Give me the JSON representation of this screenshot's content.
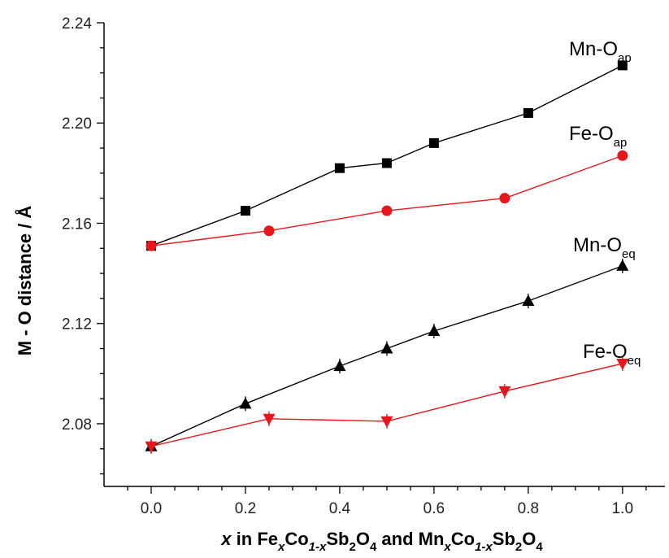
{
  "chart_data": {
    "type": "line",
    "title": "",
    "ylabel": "M - O distance / Å",
    "xlabel_parts": [
      "x",
      " in Fe",
      "x",
      "Co",
      "1-x",
      "Sb",
      "2",
      "O",
      "4",
      " and Mn",
      "x",
      "Co",
      "1-x",
      "Sb",
      "2",
      "O",
      "4"
    ],
    "xlim": [
      -0.1,
      1.09
    ],
    "ylim": [
      2.055,
      2.24
    ],
    "x_ticks": [
      "0.0",
      "0.2",
      "0.4",
      "0.6",
      "0.8",
      "1.0"
    ],
    "y_ticks": [
      "2.08",
      "2.12",
      "2.16",
      "2.20",
      "2.24"
    ],
    "grid": false,
    "legend": "none",
    "series": [
      {
        "label_main": "Mn-O",
        "label_sub": "ap",
        "color": "#000000",
        "marker": "square",
        "x": [
          0.0,
          0.2,
          0.4,
          0.5,
          0.6,
          0.8,
          1.0
        ],
        "y": [
          2.151,
          2.165,
          2.182,
          2.184,
          2.192,
          2.204,
          2.223
        ]
      },
      {
        "label_main": "Fe-O",
        "label_sub": "ap",
        "color": "#e8161b",
        "marker": "circle",
        "x": [
          0.0,
          0.25,
          0.5,
          0.75,
          1.0
        ],
        "y": [
          2.151,
          2.157,
          2.165,
          2.17,
          2.187
        ]
      },
      {
        "label_main": "Mn-O",
        "label_sub": "eq",
        "color": "#000000",
        "marker": "triangle-up",
        "x": [
          0.0,
          0.2,
          0.4,
          0.5,
          0.6,
          0.8,
          1.0
        ],
        "y": [
          2.071,
          2.088,
          2.103,
          2.11,
          2.117,
          2.129,
          2.143
        ]
      },
      {
        "label_main": "Fe-O",
        "label_sub": "eq",
        "color": "#e8161b",
        "marker": "triangle-down",
        "x": [
          0.0,
          0.25,
          0.5,
          0.75,
          1.0
        ],
        "y": [
          2.071,
          2.082,
          2.081,
          2.093,
          2.104
        ]
      }
    ]
  }
}
